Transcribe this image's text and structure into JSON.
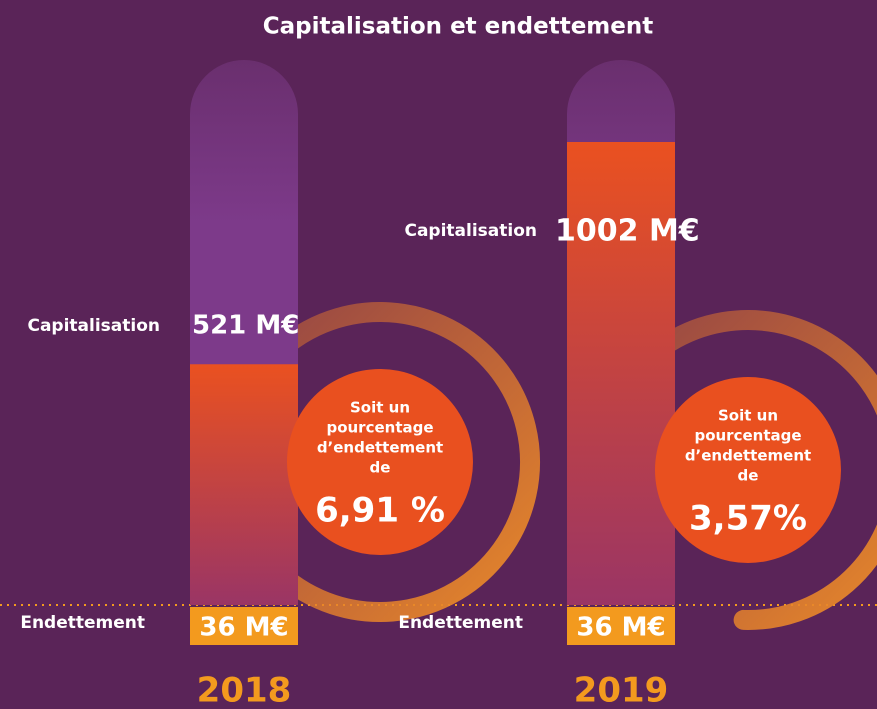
{
  "title": "Capitalisation et endettement",
  "panels": [
    {
      "year": "2018",
      "capitalisation": {
        "label": "Capitalisation",
        "value": 521,
        "value_label": "521 M€"
      },
      "endettement": {
        "label": "Endettement",
        "value": 36,
        "value_label": "36 M€"
      },
      "circle": {
        "text": [
          "Soit un",
          "pourcentage",
          "d’endettement",
          "de"
        ],
        "value": 6.91,
        "value_label": "6,91 %"
      }
    },
    {
      "year": "2019",
      "capitalisation": {
        "label": "Capitalisation",
        "value": 1002,
        "value_label": "1002 M€"
      },
      "endettement": {
        "label": "Endettement",
        "value": 36,
        "value_label": "36 M€"
      },
      "circle": {
        "text": [
          "Soit un",
          "pourcentage",
          "d’endettement",
          "de"
        ],
        "value": 3.57,
        "value_label": "3,57%"
      }
    }
  ]
}
